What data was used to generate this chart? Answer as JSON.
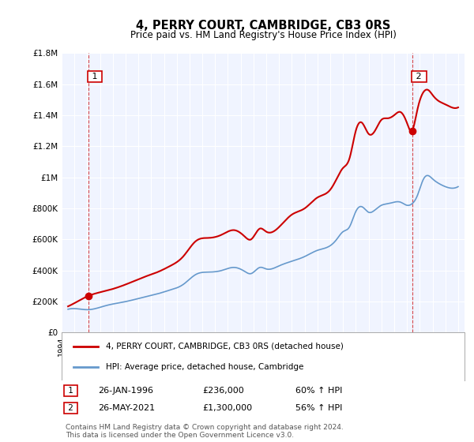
{
  "title": "4, PERRY COURT, CAMBRIDGE, CB3 0RS",
  "subtitle": "Price paid vs. HM Land Registry's House Price Index (HPI)",
  "xlabel": "",
  "ylabel": "",
  "ylim": [
    0,
    1800000
  ],
  "xlim_start": 1994.0,
  "xlim_end": 2025.5,
  "yticks": [
    0,
    200000,
    400000,
    600000,
    800000,
    1000000,
    1200000,
    1400000,
    1600000,
    1800000
  ],
  "ytick_labels": [
    "£0",
    "£200K",
    "£400K",
    "£600K",
    "£800K",
    "£1M",
    "£1.2M",
    "£1.4M",
    "£1.6M",
    "£1.8M"
  ],
  "sale1_x": 1996.07,
  "sale1_y": 236000,
  "sale1_label": "1",
  "sale1_date": "26-JAN-1996",
  "sale1_price": "£236,000",
  "sale1_hpi": "60% ↑ HPI",
  "sale2_x": 2021.4,
  "sale2_y": 1300000,
  "sale2_label": "2",
  "sale2_date": "26-MAY-2021",
  "sale2_price": "£1,300,000",
  "sale2_hpi": "56% ↑ HPI",
  "line1_color": "#cc0000",
  "line2_color": "#6699cc",
  "bg_color": "#f0f4ff",
  "plot_bg": "#f8f8f8",
  "legend_line1": "4, PERRY COURT, CAMBRIDGE, CB3 0RS (detached house)",
  "legend_line2": "HPI: Average price, detached house, Cambridge",
  "footnote": "Contains HM Land Registry data © Crown copyright and database right 2024.\nThis data is licensed under the Open Government Licence v3.0."
}
